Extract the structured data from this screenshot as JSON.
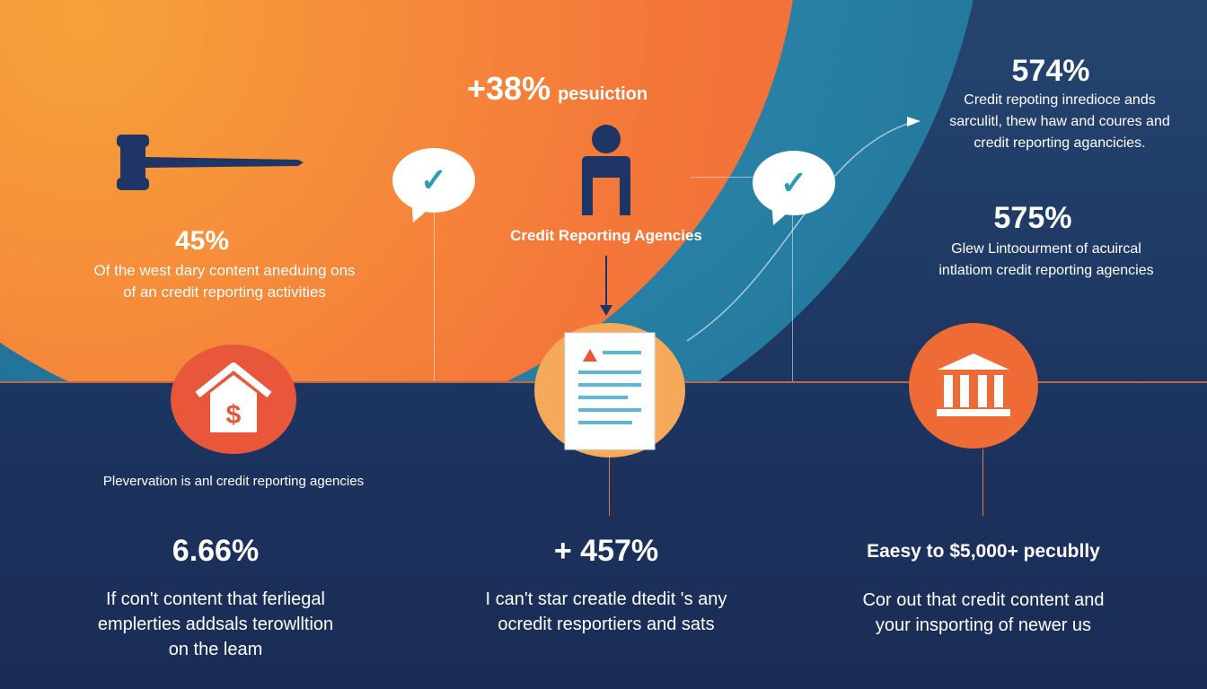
{
  "colors": {
    "orange": "#f4773a",
    "teal": "#1f6d95",
    "navy": "#1c3460",
    "icon_navy": "#1f3566"
  },
  "top_center": {
    "stat": "+38%",
    "stat_suffix": "pesuiction",
    "label": "Credit Reporting Agencies",
    "icon": "person-icon"
  },
  "left_block": {
    "stat": "45%",
    "lines": [
      "Of the west dary content aneduing ons",
      "of an credit reporting activities"
    ],
    "icon": "gavel-icon"
  },
  "right_top": {
    "stat": "574%",
    "lines": [
      "Credit repoting inredioce ands",
      "sarculitl, thew haw and coures and",
      "credit reporting agancicies."
    ]
  },
  "right_mid": {
    "stat": "575%",
    "lines": [
      "Glew Lintoourment of acuircal",
      "intlatiom credit reporting agencies"
    ]
  },
  "house_caption": "Plevervation is anl credit reporting agencies",
  "bottom": [
    {
      "stat": "6.66%",
      "lines": [
        "If con't content that ferliegal",
        "emplerties addsals terowlltion",
        "on the leam"
      ]
    },
    {
      "stat": "+ 457%",
      "lines": [
        "I can't star creatle dtedit 's any",
        "ocredit resportiers and sats"
      ]
    },
    {
      "stat": "Eaesy to $5,000+ pecublly",
      "lines": [
        "Cor out that credit content and",
        "your insporting of newer us"
      ]
    }
  ],
  "icons": [
    "gavel-icon",
    "check-bubble-icon",
    "person-icon",
    "house-dollar-icon",
    "document-warning-icon",
    "bank-icon"
  ]
}
